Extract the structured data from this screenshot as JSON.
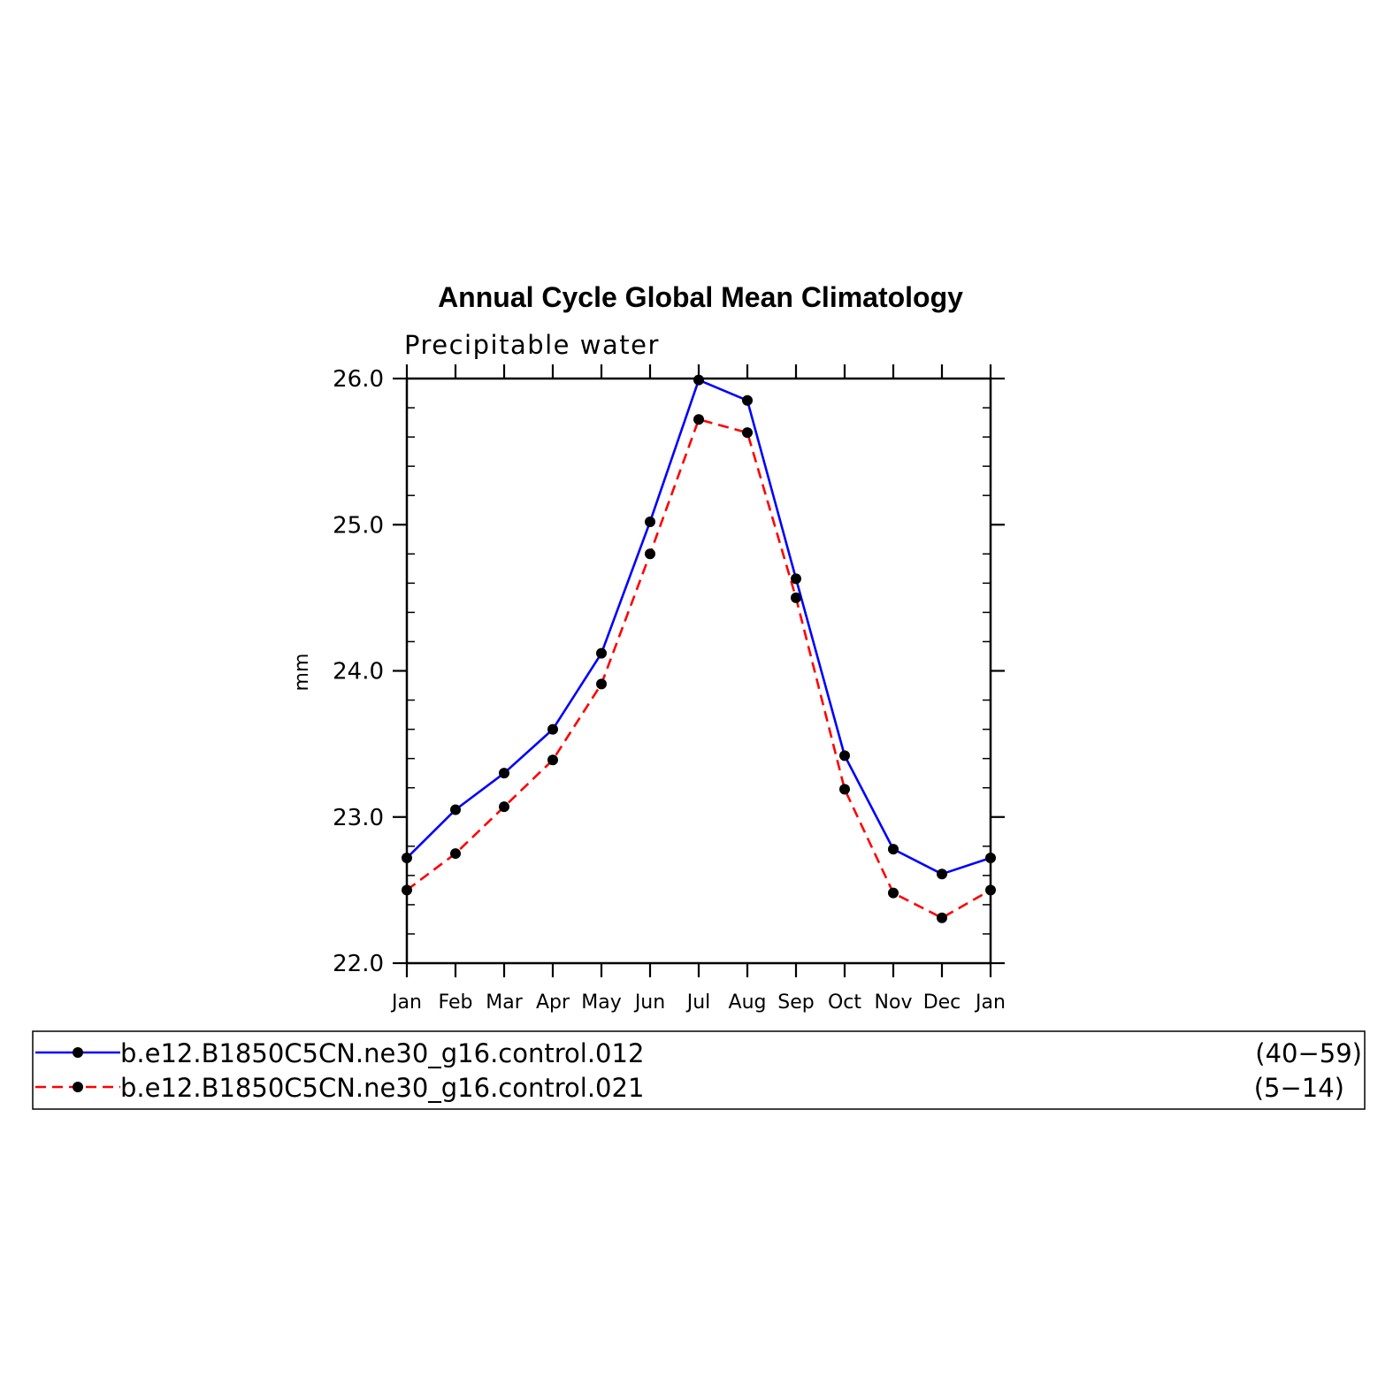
{
  "chart_data": {
    "type": "line",
    "title": "Annual Cycle Global Mean Climatology",
    "subtitle": "Precipitable water",
    "xlabel": "",
    "ylabel": "mm",
    "categories": [
      "Jan",
      "Feb",
      "Mar",
      "Apr",
      "May",
      "Jun",
      "Jul",
      "Aug",
      "Sep",
      "Oct",
      "Nov",
      "Dec",
      "Jan"
    ],
    "ylim": [
      22.0,
      26.0
    ],
    "yticks": [
      "22.0",
      "23.0",
      "24.0",
      "25.0",
      "26.0"
    ],
    "grid": false,
    "legend_position": "bottom",
    "series": [
      {
        "name": "b.e12.B1850C5CN.ne30_g16.control.012",
        "years": "(40−59)",
        "color": "#0000ff",
        "dash": "solid",
        "values": [
          22.72,
          23.05,
          23.3,
          23.6,
          24.12,
          25.02,
          25.99,
          25.85,
          24.63,
          23.42,
          22.78,
          22.61,
          22.72
        ]
      },
      {
        "name": "b.e12.B1850C5CN.ne30_g16.control.021",
        "years": "(5−14)",
        "color": "#ff0000",
        "dash": "dashed",
        "values": [
          22.5,
          22.75,
          23.07,
          23.39,
          23.91,
          24.8,
          25.72,
          25.63,
          24.5,
          23.19,
          22.48,
          22.31,
          22.5
        ]
      }
    ],
    "marker_color": "#000000"
  }
}
